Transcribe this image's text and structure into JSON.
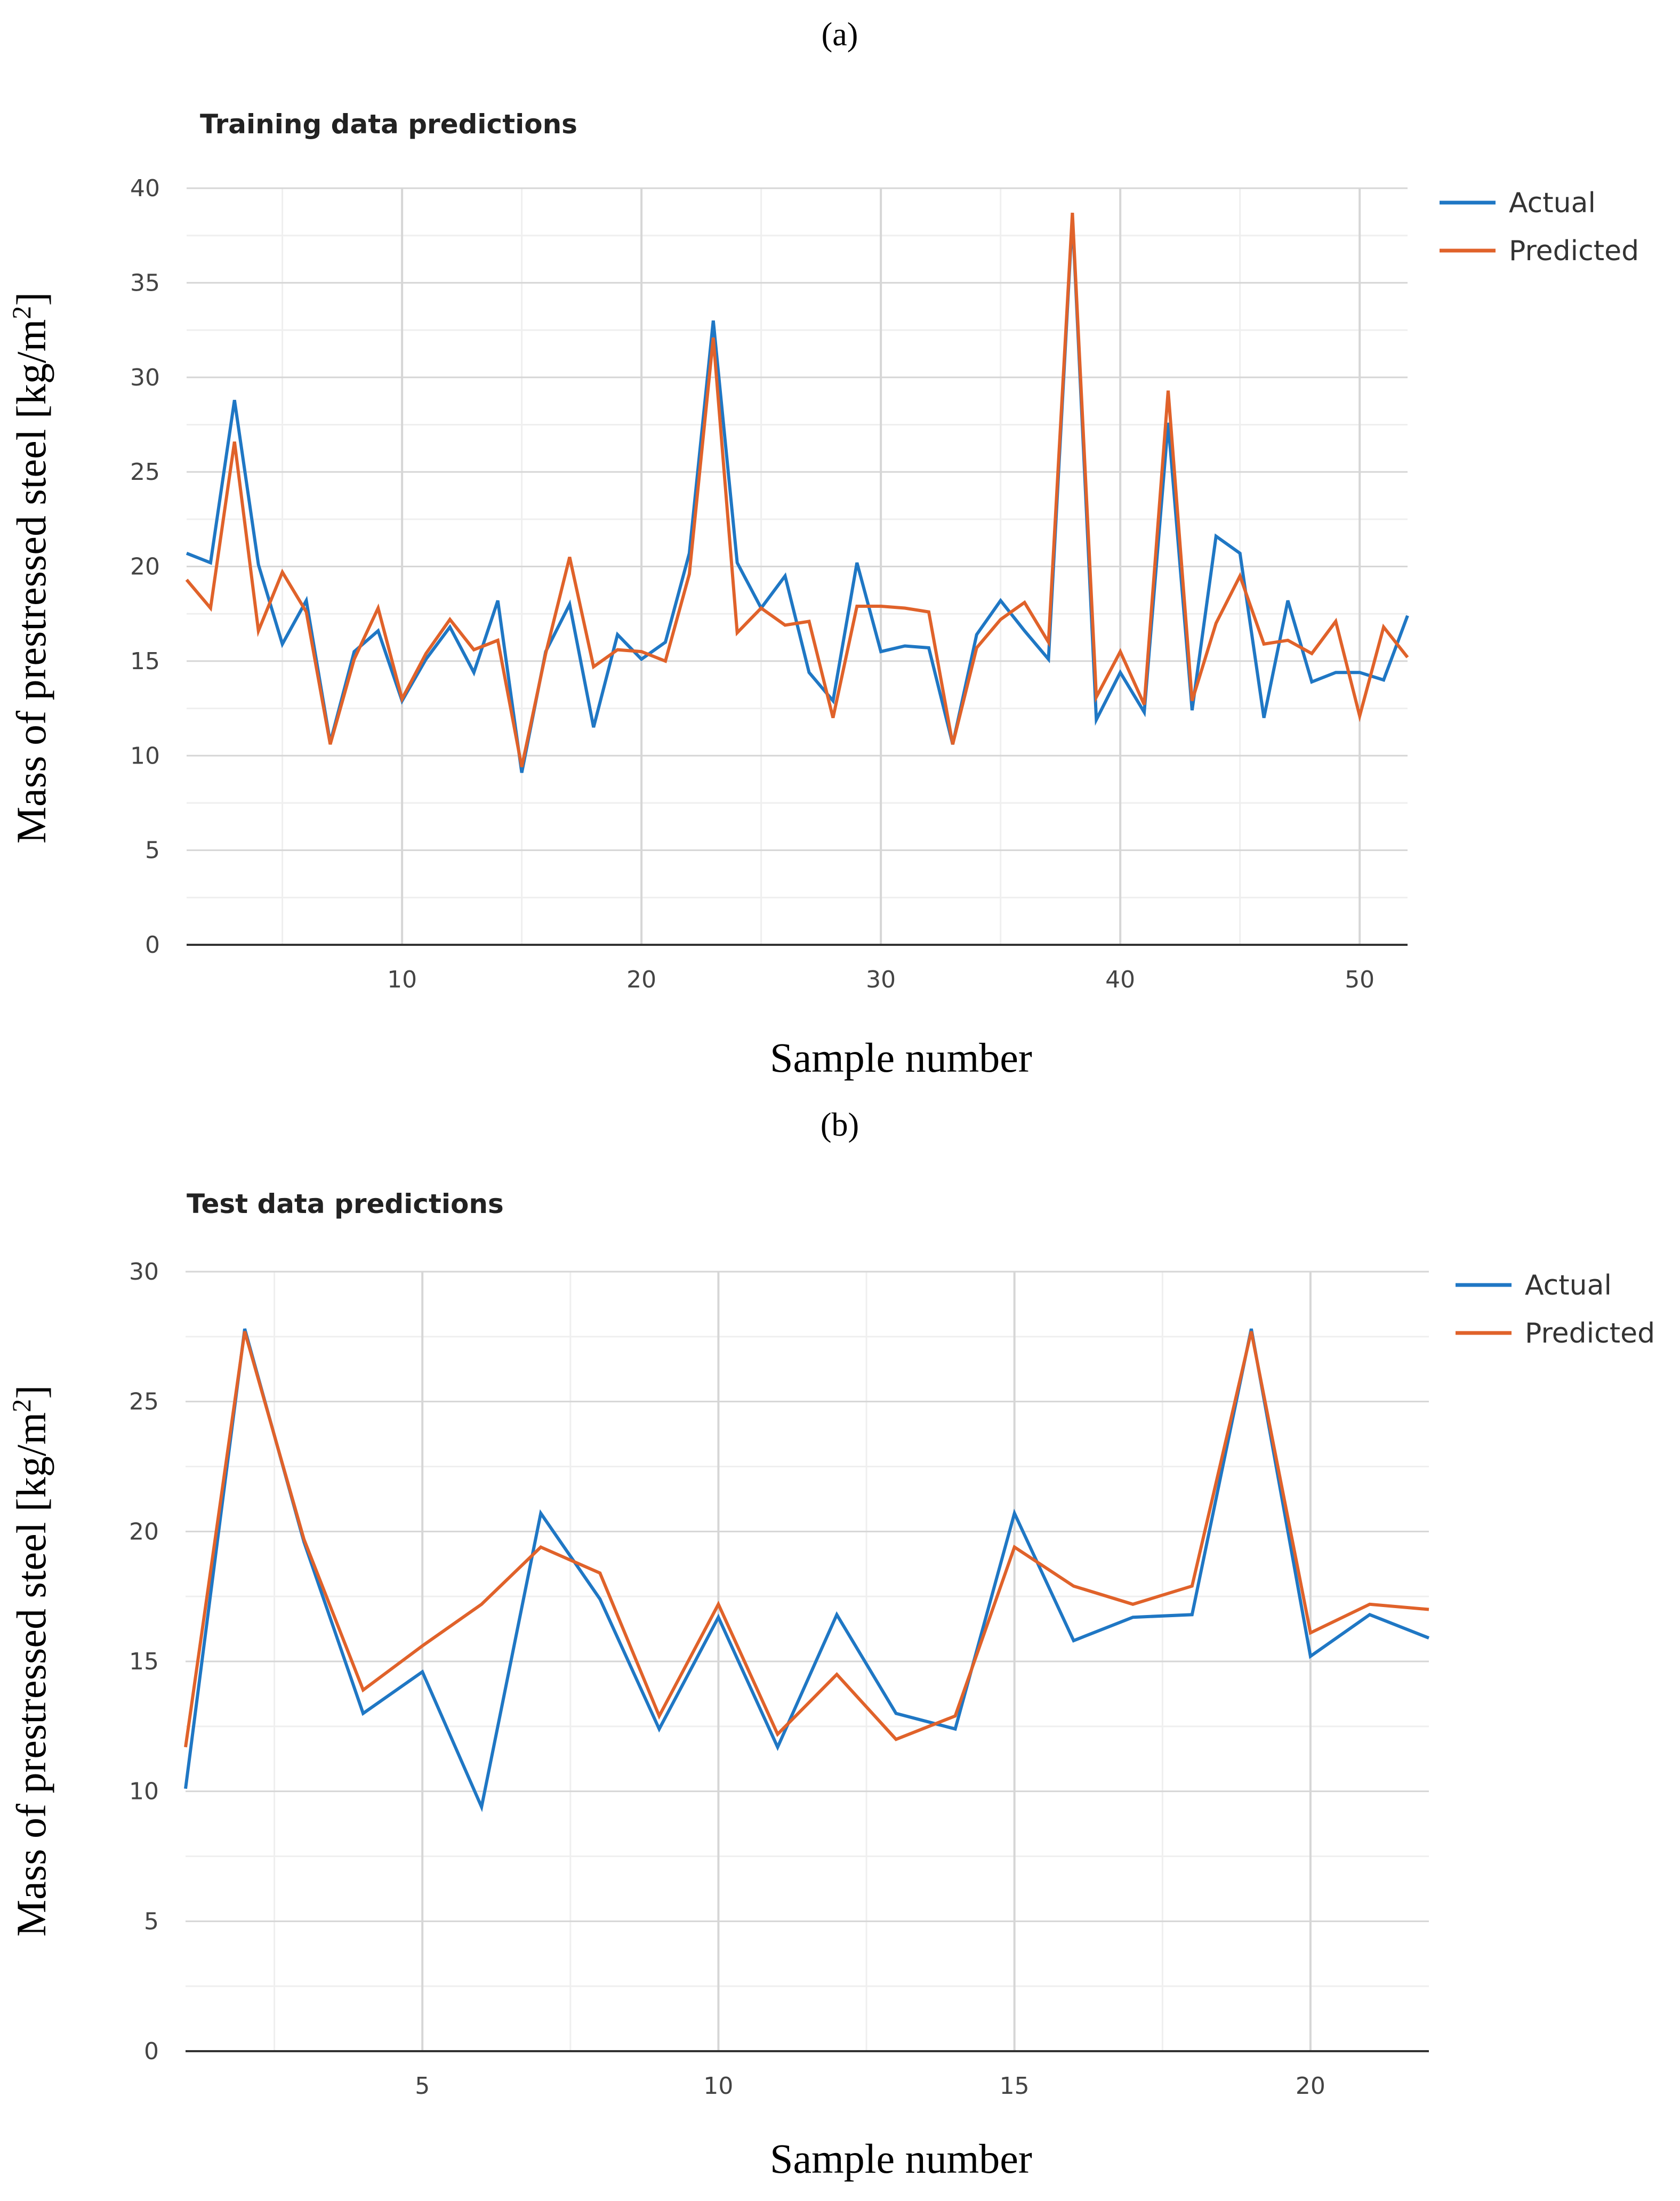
{
  "chart_data": [
    {
      "type": "line",
      "panel_label": "(a)",
      "title": "Training data predictions",
      "xlabel": "Sample number",
      "ylabel": "Mass of prestressed steel [kg/m2]",
      "xlim": [
        1,
        52
      ],
      "ylim": [
        0,
        40
      ],
      "x_ticks": [
        10,
        20,
        30,
        40,
        50
      ],
      "y_ticks": [
        0,
        5,
        10,
        15,
        20,
        25,
        30,
        35,
        40
      ],
      "legend_position": "top-right",
      "x": [
        1,
        2,
        3,
        4,
        5,
        6,
        7,
        8,
        9,
        10,
        11,
        12,
        13,
        14,
        15,
        16,
        17,
        18,
        19,
        20,
        21,
        22,
        23,
        24,
        25,
        26,
        27,
        28,
        29,
        30,
        31,
        32,
        33,
        34,
        35,
        36,
        37,
        38,
        39,
        40,
        41,
        42,
        43,
        44,
        45,
        46,
        47,
        48,
        49,
        50,
        51,
        52
      ],
      "series": [
        {
          "name": "Actual",
          "color": "#1f77c4",
          "values": [
            20.7,
            20.2,
            28.8,
            20.1,
            15.9,
            18.2,
            10.7,
            15.5,
            16.6,
            12.9,
            15.1,
            16.8,
            14.4,
            18.2,
            9.1,
            15.5,
            18.0,
            11.5,
            16.4,
            15.1,
            16.0,
            20.7,
            33.0,
            20.2,
            17.8,
            19.5,
            14.4,
            12.9,
            20.2,
            15.5,
            15.8,
            15.7,
            10.6,
            16.4,
            18.2,
            16.6,
            15.1,
            38.5,
            11.9,
            14.4,
            12.3,
            27.6,
            12.4,
            21.6,
            20.7,
            12.0,
            18.2,
            13.9,
            14.4,
            14.4,
            14.0,
            17.4
          ]
        },
        {
          "name": "Predicted",
          "color": "#e0622a",
          "values": [
            19.3,
            17.8,
            26.6,
            16.6,
            19.7,
            17.6,
            10.6,
            15.1,
            17.8,
            13.0,
            15.4,
            17.2,
            15.6,
            16.1,
            9.4,
            15.4,
            20.5,
            14.7,
            15.6,
            15.5,
            15.0,
            19.6,
            32.1,
            16.5,
            17.8,
            16.9,
            17.1,
            12.0,
            17.9,
            17.9,
            17.8,
            17.6,
            10.6,
            15.7,
            17.2,
            18.1,
            16.0,
            38.7,
            13.1,
            15.5,
            12.7,
            29.3,
            12.9,
            17.0,
            19.5,
            15.9,
            16.1,
            15.4,
            17.1,
            12.1,
            16.8,
            15.2
          ]
        }
      ]
    },
    {
      "type": "line",
      "panel_label": "(b)",
      "title": "Test data predictions",
      "xlabel": "Sample number",
      "ylabel": "Mass of prestressed steel [kg/m2]",
      "xlim": [
        1,
        22
      ],
      "ylim": [
        0,
        30
      ],
      "x_ticks": [
        5,
        10,
        15,
        20
      ],
      "y_ticks": [
        0,
        5,
        10,
        15,
        20,
        25,
        30
      ],
      "legend_position": "top-right",
      "x": [
        1,
        2,
        3,
        4,
        5,
        6,
        7,
        8,
        9,
        10,
        11,
        12,
        13,
        14,
        15,
        16,
        17,
        18,
        19,
        20,
        21,
        22
      ],
      "series": [
        {
          "name": "Actual",
          "color": "#1f77c4",
          "values": [
            10.1,
            27.8,
            19.6,
            13.0,
            14.6,
            9.4,
            20.7,
            17.4,
            12.4,
            16.7,
            11.7,
            16.8,
            13.0,
            12.4,
            20.7,
            15.8,
            16.7,
            16.8,
            27.8,
            15.2,
            16.8,
            15.9
          ]
        },
        {
          "name": "Predicted",
          "color": "#e0622a",
          "values": [
            11.7,
            27.7,
            19.7,
            13.9,
            15.6,
            17.2,
            19.4,
            18.4,
            12.9,
            17.2,
            12.2,
            14.5,
            12.0,
            12.9,
            19.4,
            17.9,
            17.2,
            17.9,
            27.7,
            16.1,
            17.2,
            17.0
          ]
        }
      ]
    }
  ]
}
